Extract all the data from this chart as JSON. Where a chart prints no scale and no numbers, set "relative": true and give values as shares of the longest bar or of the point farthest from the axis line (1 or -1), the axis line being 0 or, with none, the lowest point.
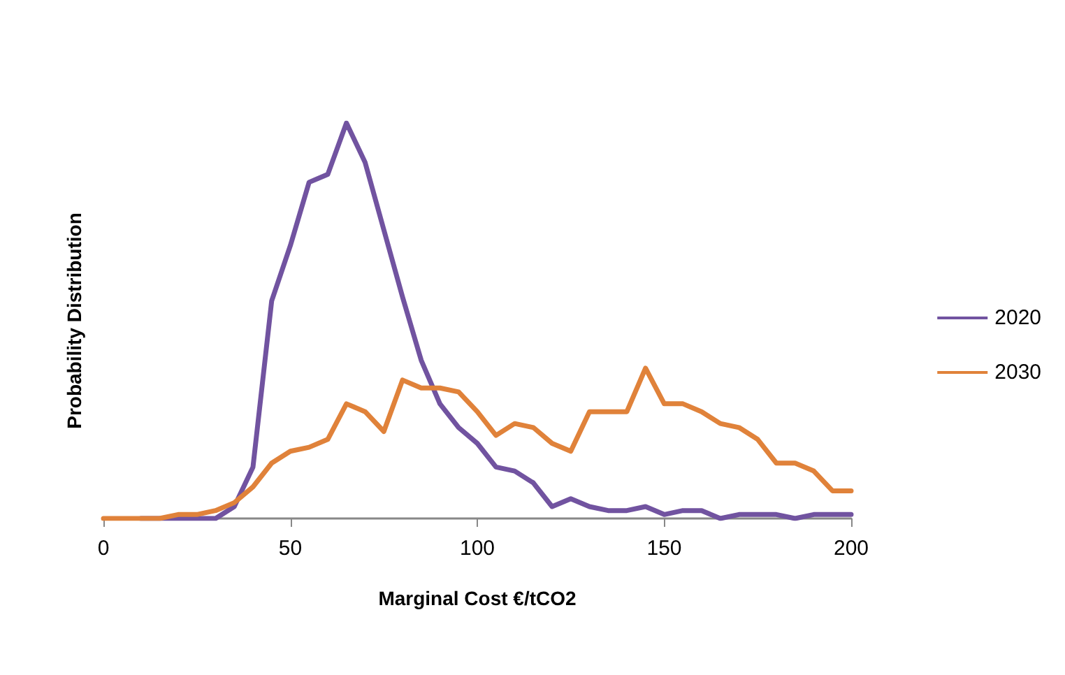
{
  "chart_data": {
    "type": "line",
    "relative": true,
    "xlabel": "Marginal Cost €/tCO2",
    "ylabel": "Probability Distribution",
    "x": [
      0,
      5,
      10,
      15,
      20,
      25,
      30,
      35,
      40,
      45,
      50,
      55,
      60,
      65,
      70,
      75,
      80,
      85,
      90,
      95,
      100,
      105,
      110,
      115,
      120,
      125,
      130,
      135,
      140,
      145,
      150,
      155,
      160,
      165,
      170,
      175,
      180,
      185,
      190,
      195,
      200
    ],
    "xlim": [
      0,
      200
    ],
    "xticks": [
      0,
      50,
      100,
      150,
      200
    ],
    "grid": false,
    "legend": "right",
    "marker": "none",
    "line_style": "solid",
    "series": [
      {
        "name": "2020",
        "color": "#7153a0",
        "values": [
          null,
          null,
          0,
          0,
          0,
          0,
          0,
          0.03,
          0.13,
          0.55,
          0.69,
          0.85,
          0.87,
          1,
          0.9,
          0.73,
          0.56,
          0.4,
          0.29,
          0.23,
          0.19,
          0.13,
          0.12,
          0.09,
          0.03,
          0.05,
          0.03,
          0.02,
          0.02,
          0.03,
          0.01,
          0.02,
          0.02,
          0,
          0.01,
          0.01,
          0.01,
          0,
          0.01,
          0.01,
          0.01
        ]
      },
      {
        "name": "2030",
        "color": "#e0823a",
        "values": [
          0,
          0,
          0,
          0,
          0.01,
          0.01,
          0.02,
          0.04,
          0.08,
          0.14,
          0.17,
          0.18,
          0.2,
          0.29,
          0.27,
          0.22,
          0.35,
          0.33,
          0.33,
          0.32,
          0.27,
          0.21,
          0.24,
          0.23,
          0.19,
          0.17,
          0.27,
          0.27,
          0.27,
          0.38,
          0.29,
          0.29,
          0.27,
          0.24,
          0.23,
          0.2,
          0.14,
          0.14,
          0.12,
          0.07,
          0.07
        ]
      }
    ]
  }
}
